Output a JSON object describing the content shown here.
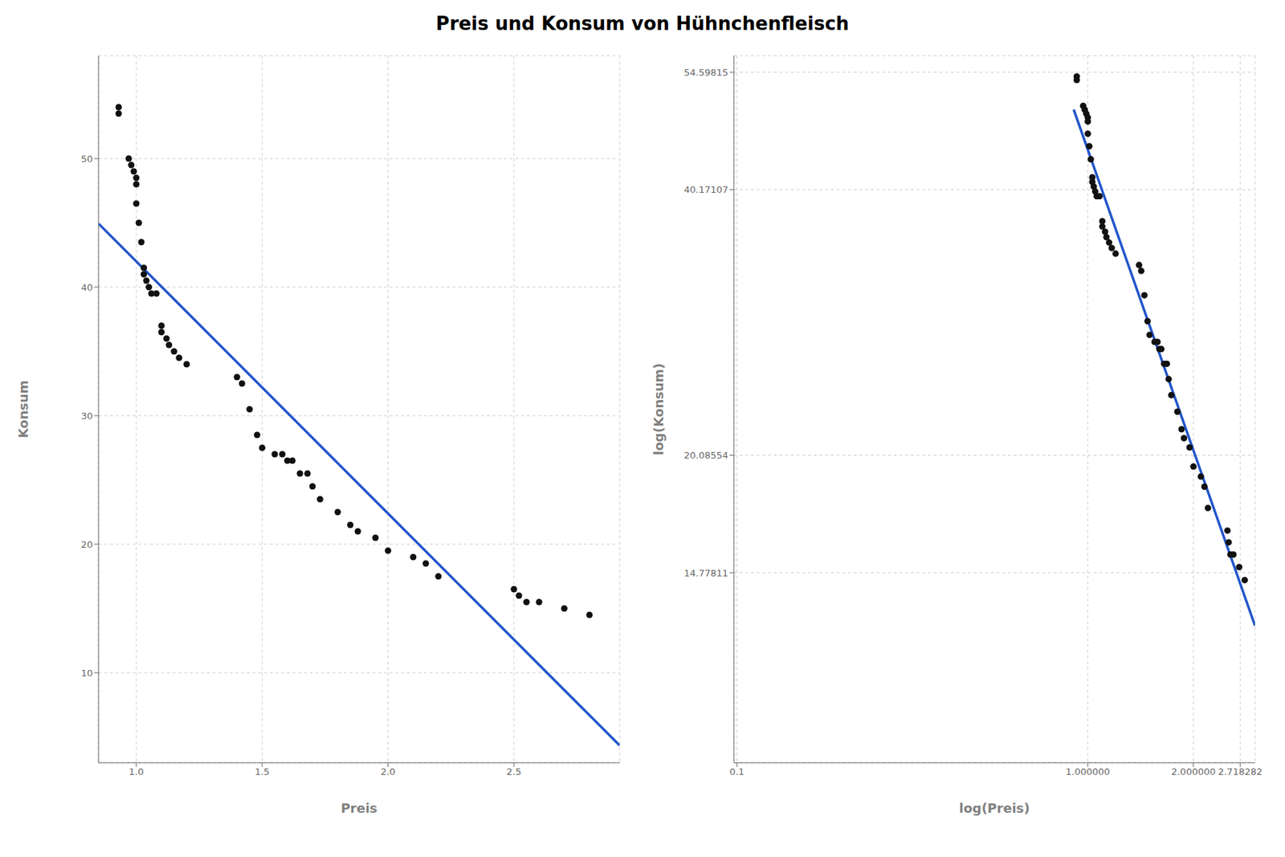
{
  "title": "Preis und Konsum von Hühnchenfleisch",
  "chart_data": [
    {
      "type": "scatter",
      "xlabel": "Preis",
      "ylabel": "Konsum",
      "xlim": [
        0.85,
        2.92
      ],
      "ylim": [
        3,
        58
      ],
      "xticks": [
        {
          "value": 1,
          "label": "1.0"
        },
        1.5,
        {
          "value": 2,
          "label": "2.0"
        },
        2.5
      ],
      "yticks": [
        10,
        20,
        30,
        40,
        50
      ],
      "grid": true,
      "series": [
        {
          "type": "scatter",
          "color": "#111111",
          "x": [
            0.93,
            0.93,
            0.97,
            0.98,
            0.99,
            1.0,
            1.0,
            1.0,
            1.01,
            1.02,
            1.03,
            1.03,
            1.04,
            1.05,
            1.06,
            1.08,
            1.1,
            1.1,
            1.12,
            1.13,
            1.15,
            1.17,
            1.2,
            1.4,
            1.42,
            1.45,
            1.48,
            1.5,
            1.55,
            1.58,
            1.6,
            1.62,
            1.65,
            1.68,
            1.7,
            1.73,
            1.8,
            1.85,
            1.88,
            1.95,
            2.0,
            2.1,
            2.15,
            2.2,
            2.5,
            2.52,
            2.55,
            2.6,
            2.7,
            2.8
          ],
          "values": [
            54.0,
            53.5,
            50.0,
            49.5,
            49.0,
            48.5,
            48.0,
            46.5,
            45.0,
            43.5,
            41.5,
            41.0,
            40.5,
            40.0,
            39.5,
            39.5,
            37.0,
            36.5,
            36.0,
            35.5,
            35.0,
            34.5,
            34.0,
            33.0,
            32.5,
            30.5,
            28.5,
            27.5,
            27.0,
            27.0,
            26.5,
            26.5,
            25.5,
            25.5,
            24.5,
            23.5,
            22.5,
            21.5,
            21.0,
            20.5,
            19.5,
            19.0,
            18.5,
            17.5,
            16.5,
            16.0,
            15.5,
            15.5,
            15.0,
            14.5
          ]
        },
        {
          "type": "line",
          "color": "#2255cc",
          "x": [
            0.85,
            2.92
          ],
          "values": [
            44.93732,
            4.34766
          ]
        }
      ]
    },
    {
      "type": "scatter",
      "xlabel": "log(Preis)",
      "ylabel": "log(Konsum)",
      "log": true,
      "xlim": [
        0.0980199,
        2.996122
      ],
      "ylim": [
        9,
        57
      ],
      "xticks": [
        0.1,
        {
          "value": 1,
          "label": "1.000000"
        },
        {
          "value": 2,
          "label": "2.000000"
        },
        2.718282
      ],
      "yticks": [
        54.59815,
        40.17107,
        20.08554,
        14.77811
      ],
      "grid": true,
      "series": [
        {
          "type": "scatter",
          "color": "#111111",
          "x": [
            0.93,
            0.93,
            0.97,
            0.98,
            0.99,
            1.0,
            1.0,
            1.0,
            1.01,
            1.02,
            1.03,
            1.03,
            1.04,
            1.05,
            1.06,
            1.08,
            1.1,
            1.1,
            1.12,
            1.13,
            1.15,
            1.17,
            1.2,
            1.4,
            1.42,
            1.45,
            1.48,
            1.5,
            1.55,
            1.58,
            1.6,
            1.62,
            1.65,
            1.68,
            1.7,
            1.73,
            1.8,
            1.85,
            1.88,
            1.95,
            2.0,
            2.1,
            2.15,
            2.2,
            2.5,
            2.52,
            2.55,
            2.6,
            2.7,
            2.8
          ],
          "values": [
            54.0,
            53.5,
            50.0,
            49.5,
            49.0,
            48.5,
            48.0,
            46.5,
            45.0,
            43.5,
            41.5,
            41.0,
            40.5,
            40.0,
            39.5,
            39.5,
            37.0,
            36.5,
            36.0,
            35.5,
            35.0,
            34.5,
            34.0,
            33.0,
            32.5,
            30.5,
            28.5,
            27.5,
            27.0,
            27.0,
            26.5,
            26.5,
            25.5,
            25.5,
            24.5,
            23.5,
            22.5,
            21.5,
            21.0,
            20.5,
            19.5,
            19.0,
            18.5,
            17.5,
            16.5,
            16.0,
            15.5,
            15.5,
            15.0,
            14.5
          ]
        },
        {
          "type": "line",
          "color": "#2255cc",
          "x": [
            0.911585,
            2.996122
          ],
          "values": [
            49.5342,
            12.8686
          ]
        }
      ]
    }
  ]
}
